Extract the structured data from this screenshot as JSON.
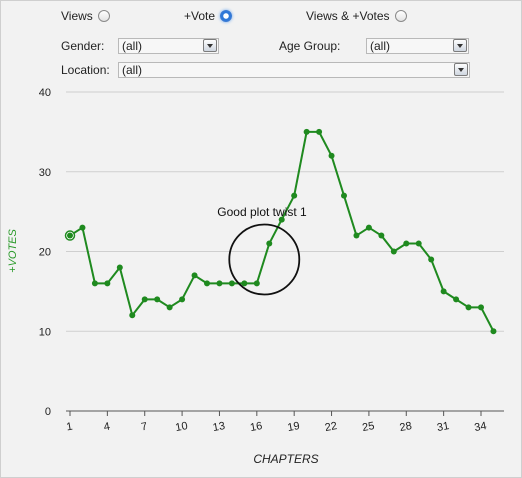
{
  "controls": {
    "mode_options": [
      {
        "label": "Views",
        "selected": false
      },
      {
        "label": "+Vote",
        "selected": true
      },
      {
        "label": "Views & +Votes",
        "selected": false
      }
    ],
    "gender_label": "Gender:",
    "gender_value": "(all)",
    "age_group_label": "Age Group:",
    "age_group_value": "(all)",
    "location_label": "Location:",
    "location_value": "(all)"
  },
  "colors": {
    "line": "#1f8a1f",
    "accent": "#2f78d8",
    "ylabel": "#2a9a2a"
  },
  "chart_data": {
    "type": "line",
    "xlabel": "CHAPTERS",
    "ylabel": "+VOTES",
    "ylim": [
      0,
      40
    ],
    "yticks": [
      0,
      10,
      20,
      30,
      40
    ],
    "xticks": [
      1,
      4,
      7,
      10,
      13,
      16,
      19,
      22,
      25,
      28,
      31,
      34
    ],
    "grid": "horizontal",
    "x": [
      1,
      2,
      3,
      4,
      5,
      6,
      7,
      8,
      9,
      10,
      11,
      12,
      13,
      14,
      15,
      16,
      17,
      18,
      19,
      20,
      21,
      22,
      23,
      24,
      25,
      26,
      27,
      28,
      29,
      30,
      31,
      32,
      33,
      34,
      35
    ],
    "values": [
      22,
      23,
      16,
      16,
      18,
      12,
      14,
      14,
      13,
      14,
      17,
      16,
      16,
      16,
      16,
      16,
      21,
      24,
      27,
      35,
      35,
      32,
      27,
      22,
      23,
      22,
      20,
      21,
      21,
      19,
      15,
      14,
      13,
      13,
      10
    ],
    "annotations": [
      {
        "text": "Good plot twist 1",
        "x": 16.6,
        "y": 19
      }
    ]
  }
}
